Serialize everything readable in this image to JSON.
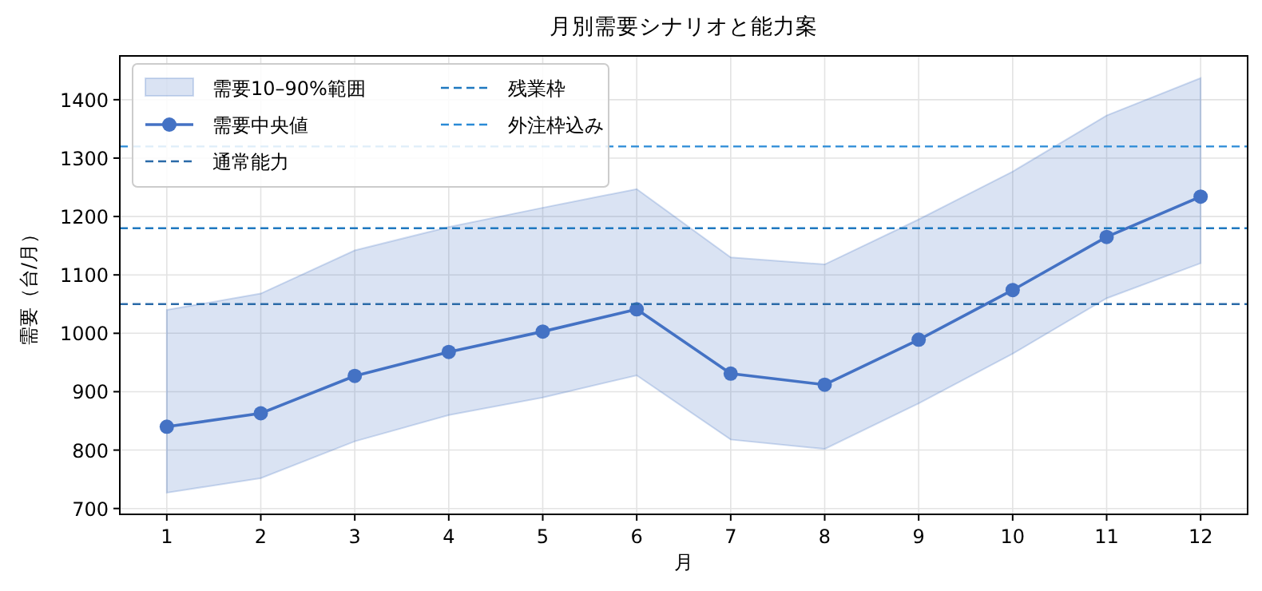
{
  "chart_data": {
    "type": "line",
    "title": "月別需要シナリオと能力案",
    "xlabel": "月",
    "ylabel": "需要（台/月）",
    "x": [
      1,
      2,
      3,
      4,
      5,
      6,
      7,
      8,
      9,
      10,
      11,
      12
    ],
    "xlim": [
      0.5,
      12.5
    ],
    "xticks": [
      1,
      2,
      3,
      4,
      5,
      6,
      7,
      8,
      9,
      10,
      11,
      12
    ],
    "ylim": [
      690,
      1475
    ],
    "yticks": [
      700,
      800,
      900,
      1000,
      1100,
      1200,
      1300,
      1400
    ],
    "series": [
      {
        "name": "需要中央値",
        "type": "line",
        "color": "#4472c4",
        "marker": "circle",
        "line_style": "solid",
        "values": [
          840,
          863,
          927,
          968,
          1003,
          1041,
          931,
          912,
          989,
          1074,
          1165,
          1234
        ],
        "lower": [
          727,
          752,
          815,
          860,
          890,
          928,
          818,
          802,
          880,
          965,
          1060,
          1120
        ],
        "upper": [
          1040,
          1068,
          1142,
          1182,
          1215,
          1247,
          1130,
          1118,
          1195,
          1277,
          1373,
          1437
        ]
      }
    ],
    "ref_lines": [
      {
        "axis": "y",
        "value": 1050,
        "label": "通常能力",
        "color": "#2a6aa8",
        "line_style": "dashed"
      },
      {
        "axis": "y",
        "value": 1180,
        "label": "残業枠",
        "color": "#1f78c0",
        "line_style": "dashed"
      },
      {
        "axis": "y",
        "value": 1320,
        "label": "外注枠込み",
        "color": "#2a8ad6",
        "line_style": "dashed"
      }
    ],
    "annotations": [
      "需要10–90%範囲"
    ],
    "grid": true,
    "legend": "top left"
  }
}
